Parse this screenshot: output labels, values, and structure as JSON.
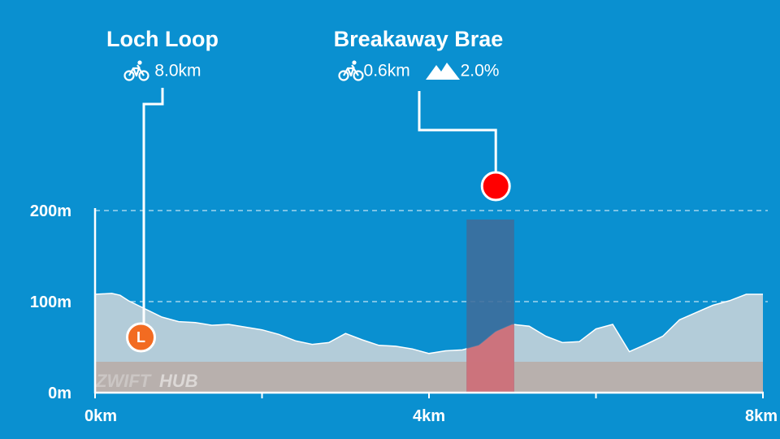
{
  "route": {
    "name": "Loch Loop",
    "distance": "8.0km"
  },
  "segment": {
    "name": "Breakaway Brae",
    "distance": "0.6km",
    "grade": "2.0%"
  },
  "route_marker": "L",
  "watermark": {
    "part1": "ZWIFT",
    "part2": "HUB"
  },
  "colors": {
    "background": "#0a90d0",
    "profile_fill": "#b3ccd9",
    "ground_band": "#b8aaa5",
    "segment_band": "#3f6c9a",
    "segment_low": "#d7737a",
    "segment_marker": "#ff0000",
    "route_marker": "#f26b21"
  },
  "chart_data": {
    "type": "area",
    "x_unit": "km",
    "y_unit": "m",
    "xlim": [
      0,
      8
    ],
    "ylim": [
      0,
      200
    ],
    "x_ticks": [
      {
        "value": 0,
        "label": "0km"
      },
      {
        "value": 4,
        "label": "4km"
      },
      {
        "value": 8,
        "label": "8km"
      }
    ],
    "y_ticks": [
      {
        "value": 0,
        "label": "0m"
      },
      {
        "value": 100,
        "label": "100m"
      },
      {
        "value": 200,
        "label": "200m"
      }
    ],
    "grid": "dashed at 100m and 200m",
    "segment_range_km": [
      4.45,
      5.02
    ],
    "segment_marker_km": 4.8,
    "route_marker_km": 0.55,
    "elevation_profile": {
      "x": [
        0,
        0.2,
        0.3,
        0.4,
        0.6,
        0.8,
        1.0,
        1.2,
        1.4,
        1.6,
        1.8,
        2.0,
        2.2,
        2.4,
        2.6,
        2.8,
        3.0,
        3.2,
        3.4,
        3.6,
        3.8,
        4.0,
        4.2,
        4.4,
        4.6,
        4.8,
        5.0,
        5.2,
        5.4,
        5.6,
        5.8,
        6.0,
        6.2,
        6.4,
        6.6,
        6.8,
        7.0,
        7.2,
        7.4,
        7.6,
        7.8,
        8.0
      ],
      "y": [
        108,
        109,
        107,
        101,
        92,
        83,
        78,
        77,
        74,
        75,
        72,
        69,
        64,
        57,
        53,
        55,
        65,
        58,
        52,
        51,
        48,
        43,
        46,
        47,
        52,
        67,
        75,
        73,
        62,
        55,
        56,
        70,
        75,
        45,
        53,
        62,
        80,
        88,
        96,
        101,
        108,
        108
      ]
    }
  }
}
